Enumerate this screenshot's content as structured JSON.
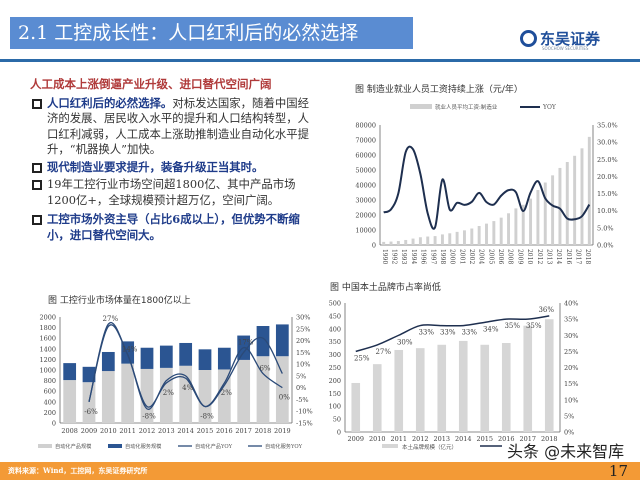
{
  "header": {
    "title": "2.1 工控成长性：人口红利后的必然选择",
    "logo_text": "东吴证券",
    "logo_sub": "SOOCHOW SECURITIES"
  },
  "left": {
    "heading": "人工成本上涨倒逼产业升级、进口替代空间广阔",
    "items": [
      {
        "bold": "人口红利后的必然选择。",
        "text": "对标发达国家，随着中国经济的发展、居民收入水平的提升和人口结构转型，人口红利减弱，人工成本上涨助推制造业自动化水平提升，“机器换人”加快。"
      },
      {
        "bold": "现代制造业要求提升，装备升级正当其时。",
        "text": ""
      },
      {
        "bold": "",
        "text": "19年工控行业市场空间超1800亿、其中产品市场1200亿+，全球规模预计超万亿，空间广阔。"
      },
      {
        "bold": "工控市场外资主导（占比6成以上），但优势不断缩小，进口替代空间大。",
        "text": ""
      }
    ]
  },
  "chart_data": [
    {
      "type": "bar+line",
      "title": "图  制造业就业人员工资持续上涨（元/年）",
      "x": [
        1990,
        1991,
        1992,
        1993,
        1994,
        1995,
        1996,
        1997,
        1998,
        1999,
        2000,
        2001,
        2002,
        2003,
        2004,
        2005,
        2006,
        2007,
        2008,
        2009,
        2010,
        2011,
        2012,
        2013,
        2014,
        2015,
        2016,
        2017,
        2018
      ],
      "xtick_labels": [
        "1990",
        "1992",
        "1993",
        "1994",
        "1996",
        "1997",
        "1998",
        "2000",
        "2001",
        "2002",
        "2004",
        "2005",
        "2006",
        "2008",
        "2009",
        "2010",
        "2012",
        "2013",
        "2014",
        "2016",
        "2017",
        "2018"
      ],
      "series": [
        {
          "name": "就业人员平均工资:制造业",
          "type": "bar",
          "axis": "left",
          "values": [
            2073,
            2289,
            2635,
            3348,
            4283,
            5169,
            5642,
            5933,
            7064,
            7794,
            8750,
            9774,
            11001,
            12671,
            14251,
            15934,
            18225,
            21144,
            24404,
            26810,
            30916,
            36665,
            41650,
            46431,
            51369,
            55324,
            59470,
            64452,
            72088
          ]
        },
        {
          "name": "YOY",
          "type": "line",
          "axis": "right",
          "values": [
            9.5,
            10.4,
            15.1,
            27.1,
            27.9,
            20.7,
            9.2,
            5.2,
            19.1,
            10.3,
            12.3,
            11.7,
            12.6,
            15.2,
            12.5,
            11.8,
            14.4,
            16.0,
            15.4,
            9.9,
            15.3,
            18.6,
            13.6,
            11.5,
            10.6,
            7.7,
            7.5,
            8.4,
            11.8
          ]
        }
      ],
      "ylim_left": [
        0,
        80000
      ],
      "yticks_left": [
        "0",
        "10000",
        "20000",
        "30000",
        "40000",
        "50000",
        "60000",
        "70000",
        "80000"
      ],
      "ylim_right": [
        0,
        35
      ],
      "yticks_right": [
        "0.0%",
        "5.0%",
        "10.0%",
        "15.0%",
        "20.0%",
        "25.0%",
        "30.0%",
        "35.0%"
      ],
      "legend": "top",
      "colors": {
        "bar": "#d0d0d0",
        "line": "#1e2f4f"
      }
    },
    {
      "type": "stacked-bar+line",
      "title": "图  工控行业市场体量在1800亿以上",
      "categories": [
        "2008",
        "2009",
        "2010",
        "2011",
        "2012",
        "2013",
        "2014",
        "2015",
        "2016",
        "2017",
        "2018",
        "2019"
      ],
      "series": [
        {
          "name": "自动化产品规模",
          "type": "bar",
          "values": [
            810,
            770,
            980,
            1120,
            1020,
            1040,
            1080,
            1000,
            1010,
            1190,
            1260,
            1260
          ]
        },
        {
          "name": "自动化服务规模",
          "type": "bar",
          "values": [
            320,
            290,
            360,
            420,
            400,
            420,
            430,
            390,
            410,
            460,
            570,
            600
          ]
        },
        {
          "name": "自动化产品YOY",
          "type": "line",
          "values": [
            null,
            -6,
            27,
            14,
            -8,
            2,
            4,
            -8,
            2,
            17,
            6,
            0
          ]
        },
        {
          "name": "自动化服务YOY",
          "type": "line",
          "values": [
            null,
            -6,
            26,
            14,
            -9,
            3,
            5,
            -8,
            1,
            15,
            21,
            6
          ]
        }
      ],
      "data_labels": [
        "",
        "-6%",
        "27%",
        "14%",
        "-8%",
        "2%",
        "4%",
        "-8%",
        "2%",
        "17%",
        "6%",
        "0%"
      ],
      "ylim_left": [
        0,
        2000
      ],
      "yticks_left": [
        "0",
        "200",
        "400",
        "600",
        "800",
        "1000",
        "1200",
        "1400",
        "1600",
        "1800",
        "2000"
      ],
      "ylim_right": [
        -15,
        30
      ],
      "yticks_right": [
        "-15%",
        "-10%",
        "-5%",
        "0%",
        "5%",
        "10%",
        "15%",
        "20%",
        "25%",
        "30%"
      ],
      "legend": "bottom",
      "colors": {
        "product": "#d0d0d0",
        "service": "#2b5592",
        "line": "#2b4a78"
      }
    },
    {
      "type": "bar+line",
      "title": "图  中国本土品牌市占率尚低",
      "categories": [
        "2009",
        "2010",
        "2011",
        "2012",
        "2013",
        "2014",
        "2015",
        "2016",
        "2017",
        "2018"
      ],
      "series": [
        {
          "name": "本土品牌规模（亿元）",
          "type": "bar",
          "values": [
            190,
            263,
            318,
            325,
            338,
            353,
            338,
            345,
            412,
            437
          ]
        },
        {
          "type": "line",
          "values": [
            25,
            27,
            30,
            33,
            33,
            33,
            34,
            35,
            35,
            36
          ]
        }
      ],
      "data_labels": [
        "25%",
        "27%",
        "30%",
        "33%",
        "33%",
        "33%",
        "34%",
        "35%",
        "35%",
        "36%"
      ],
      "ylim_left": [
        0,
        500
      ],
      "yticks_left": [
        "0",
        "50",
        "100",
        "150",
        "200",
        "250",
        "300",
        "350",
        "400",
        "450",
        "500"
      ],
      "ylim_right": [
        0,
        40
      ],
      "yticks_right": [
        "0%",
        "5%",
        "10%",
        "15%",
        "20%",
        "25%",
        "30%",
        "35%",
        "40%"
      ],
      "legend": "bottom",
      "colors": {
        "bar": "#d6d6d6",
        "line": "#1e2f4f"
      }
    }
  ],
  "footer": {
    "source": "资料来源：Wind，工控网，东吴证券研究所",
    "page": "17",
    "watermark": "头条 @未来智库"
  }
}
